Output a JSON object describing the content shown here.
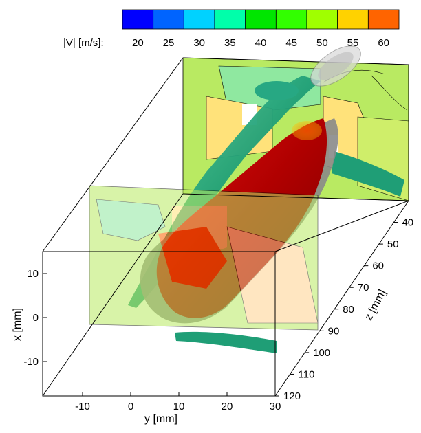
{
  "chart_data": {
    "type": "3d-isosurface",
    "colorbar": {
      "label": "|V| [m/s]:",
      "tick_labels": [
        "20",
        "25",
        "30",
        "35",
        "40",
        "45",
        "50",
        "55",
        "60"
      ],
      "levels": [
        17.5,
        22.5,
        27.5,
        32.5,
        37.5,
        42.5,
        47.5,
        52.5,
        57.5,
        62.5
      ],
      "colors": [
        "#0000ff",
        "#0064ff",
        "#00d2ff",
        "#00ffaa",
        "#00e600",
        "#32ff00",
        "#a0ff00",
        "#ffd200",
        "#ff6400",
        "#ff0000"
      ]
    },
    "axes": {
      "x": {
        "label": "x [mm]",
        "ticks": [
          "10",
          "0",
          "-10"
        ]
      },
      "y": {
        "label": "y [mm]",
        "ticks": [
          "-10",
          "0",
          "10",
          "20",
          "30"
        ]
      },
      "z": {
        "label": "z [mm]",
        "ticks": [
          "40",
          "50",
          "60",
          "70",
          "80",
          "90",
          "100",
          "110",
          "120"
        ]
      }
    },
    "surface_colors": {
      "core_isosurface": "#c00000",
      "outer_isosurface": "#8c8c8c",
      "secondary_isosurface": "#1f9e76"
    }
  }
}
